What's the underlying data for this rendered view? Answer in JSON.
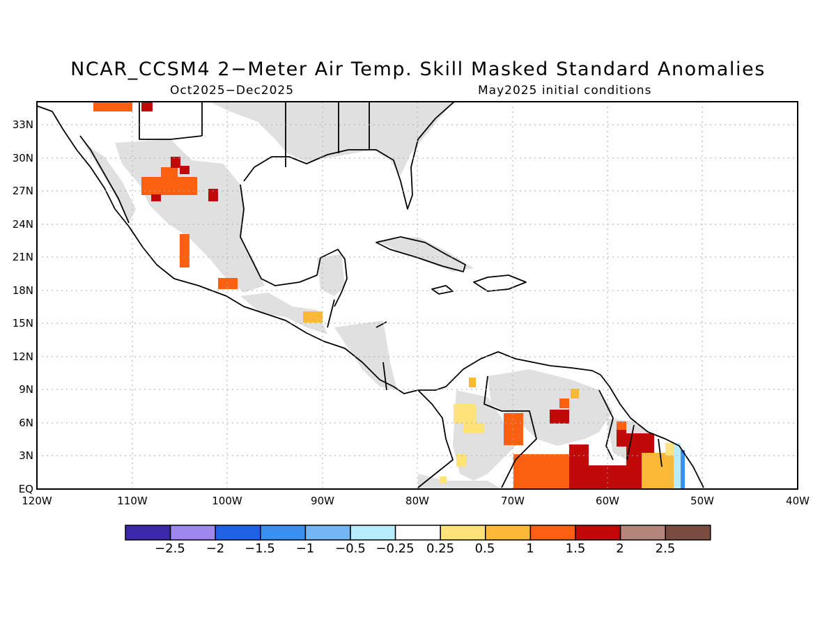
{
  "title": "NCAR_CCSM4 2−Meter Air Temp. Skill Masked Standard Anomalies",
  "subtitle_left": "Oct2025−Dec2025",
  "subtitle_right": "May2025 initial conditions",
  "lat_ticks": [
    "33N",
    "30N",
    "27N",
    "24N",
    "21N",
    "18N",
    "15N",
    "12N",
    "9N",
    "6N",
    "3N",
    "EQ"
  ],
  "lon_ticks": [
    "120W",
    "110W",
    "100W",
    "90W",
    "80W",
    "70W",
    "60W",
    "50W",
    "40W"
  ],
  "colorbar": {
    "colors": [
      "#3b28a8",
      "#9e88f0",
      "#1f62e6",
      "#3a90f0",
      "#74b6f4",
      "#b6ecfb",
      "#ffffff",
      "#fde37a",
      "#fbb935",
      "#fb6010",
      "#c00a0a",
      "#b4857a",
      "#7a4c40"
    ],
    "labels": [
      "−2.5",
      "−2",
      "−1.5",
      "−1",
      "−0.5",
      "−0.25",
      "0.25",
      "0.5",
      "1",
      "1.5",
      "2",
      "2.5"
    ]
  },
  "mask_color": "#e0e0e0"
}
